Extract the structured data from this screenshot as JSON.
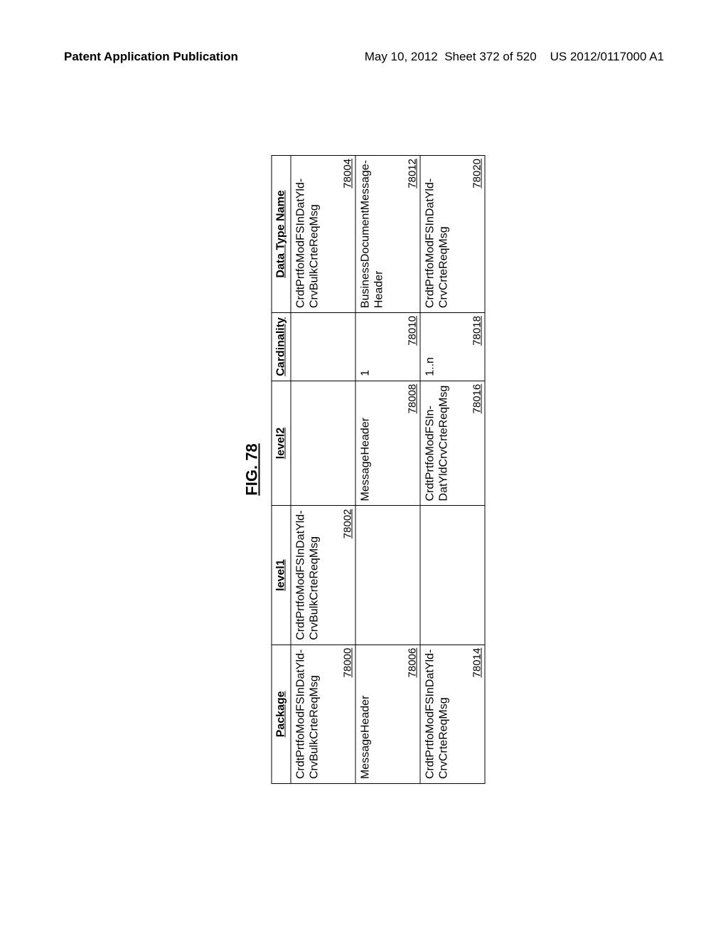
{
  "header": {
    "left": "Patent Application Publication",
    "date": "May 10, 2012",
    "sheet": "Sheet 372 of 520",
    "pubno": "US 2012/0117000 A1"
  },
  "figure": {
    "title": "FIG. 78",
    "columns": [
      "Package",
      "level1",
      "level2",
      "Cardinality",
      "Data Type Name"
    ],
    "rows": [
      {
        "package": {
          "text": "CrdtPrtfoModFSInDatYld-\nCrvBulkCrteReqMsg",
          "ref": "78000"
        },
        "level1": {
          "text": "CrdtPrtfoModFSInDatYld-\nCrvBulkCrteReqMsg",
          "ref": "78002"
        },
        "level2": {
          "text": "",
          "ref": ""
        },
        "card": {
          "text": "",
          "ref": ""
        },
        "datatype": {
          "text": "CrdtPrtfoModFSInDatYld-\nCrvBulkCrteReqMsg",
          "ref": "78004"
        }
      },
      {
        "package": {
          "text": "MessageHeader",
          "ref": "78006"
        },
        "level1": {
          "text": "",
          "ref": ""
        },
        "level2": {
          "text": "MessageHeader",
          "ref": "78008"
        },
        "card": {
          "text": "1",
          "ref": "78010"
        },
        "datatype": {
          "text": "BusinessDocumentMessage-\nHeader",
          "ref": "78012"
        }
      },
      {
        "package": {
          "text": "CrdtPrtfoModFSInDatYld-\nCrvCrteReqMsg",
          "ref": "78014"
        },
        "level1": {
          "text": "",
          "ref": ""
        },
        "level2": {
          "text": "CrdtPrtfoModFSIn-\nDatYldCrvCrteReqMsg",
          "ref": "78016"
        },
        "card": {
          "text": "1..n",
          "ref": "78018"
        },
        "datatype": {
          "text": "CrdtPrtfoModFSInDatYld-\nCrvCrteReqMsg",
          "ref": "78020"
        }
      }
    ]
  }
}
